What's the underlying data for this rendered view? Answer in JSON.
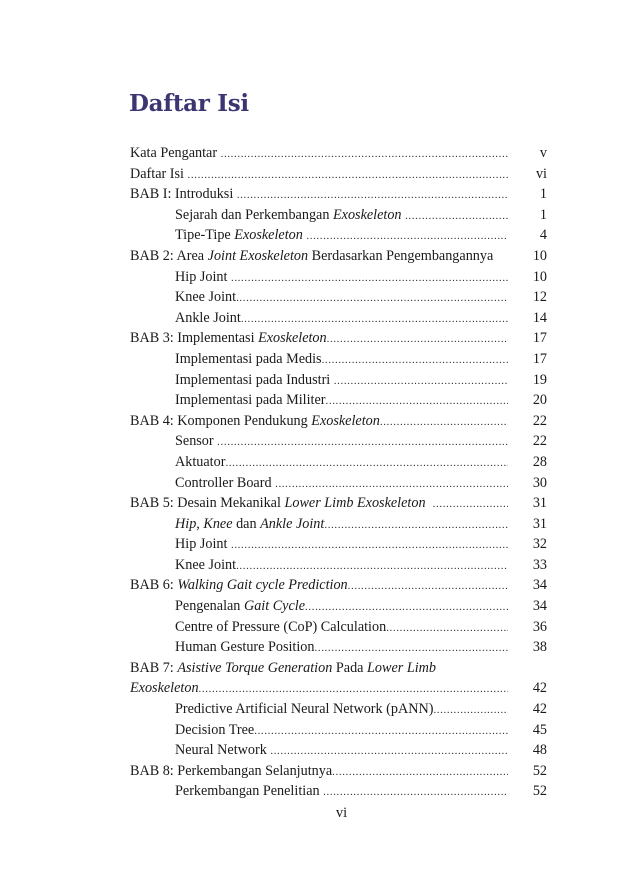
{
  "page": {
    "title": "Daftar Isi",
    "folio": "vi",
    "title_color": "#3b3572"
  },
  "toc": [
    {
      "level": 0,
      "segments": [
        {
          "t": "Kata Pengantar "
        }
      ],
      "page": "v"
    },
    {
      "level": 0,
      "segments": [
        {
          "t": "Daftar Isi "
        }
      ],
      "page": "vi"
    },
    {
      "level": 0,
      "segments": [
        {
          "t": "BAB I: Introduksi "
        }
      ],
      "page": "1"
    },
    {
      "level": 1,
      "segments": [
        {
          "t": "Sejarah dan Perkembangan "
        },
        {
          "t": "Exoskeleton",
          "i": true
        },
        {
          "t": " "
        }
      ],
      "page": "1"
    },
    {
      "level": 1,
      "segments": [
        {
          "t": "Tipe-Tipe "
        },
        {
          "t": "Exoskeleton",
          "i": true
        },
        {
          "t": " "
        }
      ],
      "page": "4"
    },
    {
      "level": 0,
      "segments": [
        {
          "t": "BAB 2: Area "
        },
        {
          "t": "Joint Exoskeleton",
          "i": true
        },
        {
          "t": " Berdasarkan Pengembangannya"
        }
      ],
      "page": "10",
      "noleader": true
    },
    {
      "level": 1,
      "segments": [
        {
          "t": "Hip Joint "
        }
      ],
      "page": "10"
    },
    {
      "level": 1,
      "segments": [
        {
          "t": "Knee Joint"
        }
      ],
      "page": "12"
    },
    {
      "level": 1,
      "segments": [
        {
          "t": "Ankle Joint"
        }
      ],
      "page": "14"
    },
    {
      "level": 0,
      "segments": [
        {
          "t": "BAB 3: Implementasi "
        },
        {
          "t": "Exoskeleton",
          "i": true
        }
      ],
      "page": "17"
    },
    {
      "level": 1,
      "segments": [
        {
          "t": "Implementasi pada Medis"
        }
      ],
      "page": "17"
    },
    {
      "level": 1,
      "segments": [
        {
          "t": "Implementasi pada Industri "
        }
      ],
      "page": "19"
    },
    {
      "level": 1,
      "segments": [
        {
          "t": "Implementasi pada Militer"
        }
      ],
      "page": "20"
    },
    {
      "level": 0,
      "segments": [
        {
          "t": "BAB 4: Komponen Pendukung "
        },
        {
          "t": "Exoskeleton",
          "i": true
        }
      ],
      "page": "22"
    },
    {
      "level": 1,
      "segments": [
        {
          "t": "Sensor "
        }
      ],
      "page": "22"
    },
    {
      "level": 1,
      "segments": [
        {
          "t": "Aktuator"
        }
      ],
      "page": "28"
    },
    {
      "level": 1,
      "segments": [
        {
          "t": "Controller Board "
        }
      ],
      "page": "30"
    },
    {
      "level": 0,
      "segments": [
        {
          "t": "BAB 5: Desain Mekanikal "
        },
        {
          "t": "Lower Limb Exoskeleton",
          "i": true
        },
        {
          "t": "  "
        }
      ],
      "page": "31"
    },
    {
      "level": 1,
      "segments": [
        {
          "t": "Hip",
          "i": true
        },
        {
          "t": ", "
        },
        {
          "t": "Knee",
          "i": true
        },
        {
          "t": " dan "
        },
        {
          "t": "Ankle Joint",
          "i": true
        }
      ],
      "page": "31"
    },
    {
      "level": 1,
      "segments": [
        {
          "t": "Hip Joint "
        }
      ],
      "page": "32"
    },
    {
      "level": 1,
      "segments": [
        {
          "t": "Knee Joint"
        }
      ],
      "page": "33"
    },
    {
      "level": 0,
      "segments": [
        {
          "t": "BAB 6: "
        },
        {
          "t": "Walking Gait cycle Prediction",
          "i": true
        }
      ],
      "page": "34"
    },
    {
      "level": 1,
      "segments": [
        {
          "t": "Pengenalan "
        },
        {
          "t": "Gait Cycle",
          "i": true
        }
      ],
      "page": "34"
    },
    {
      "level": 1,
      "segments": [
        {
          "t": "Centre of Pressure (CoP) Calculation"
        }
      ],
      "page": "36"
    },
    {
      "level": 1,
      "segments": [
        {
          "t": "Human Gesture Position"
        }
      ],
      "page": "38"
    },
    {
      "level": 0,
      "segments": [
        {
          "t": "BAB 7: "
        },
        {
          "t": "Asistive Torque Generation",
          "i": true
        },
        {
          "t": " Pada "
        },
        {
          "t": "Lower Limb",
          "i": true
        }
      ],
      "page": "",
      "noleader": true
    },
    {
      "level": 0,
      "segments": [
        {
          "t": "Exoskeleton",
          "i": true
        }
      ],
      "page": "42"
    },
    {
      "level": 1,
      "segments": [
        {
          "t": "Predictive Artificial Neural Network (pANN)"
        }
      ],
      "page": "42"
    },
    {
      "level": 1,
      "segments": [
        {
          "t": "Decision Tree"
        }
      ],
      "page": "45"
    },
    {
      "level": 1,
      "segments": [
        {
          "t": "Neural Network "
        }
      ],
      "page": "48"
    },
    {
      "level": 0,
      "segments": [
        {
          "t": "BAB 8: Perkembangan Selanjutnya"
        }
      ],
      "page": "52"
    },
    {
      "level": 1,
      "segments": [
        {
          "t": "Perkembangan Penelitian "
        }
      ],
      "page": "52"
    }
  ]
}
